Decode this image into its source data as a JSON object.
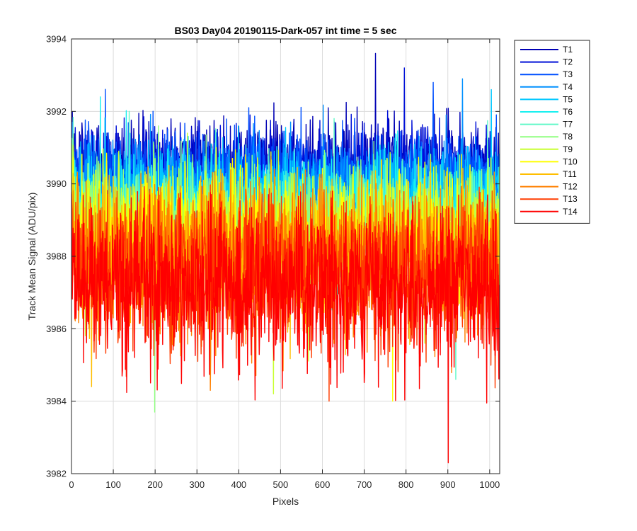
{
  "chart_data": {
    "type": "line",
    "title": "BS03 Day04 20190115-Dark-057 int time = 5 sec",
    "xlabel": "Pixels",
    "ylabel": "Track Mean Signal (ADU/pix)",
    "xlim": [
      0,
      1024
    ],
    "ylim": [
      3982,
      3994
    ],
    "xticks": [
      0,
      100,
      200,
      300,
      400,
      500,
      600,
      700,
      800,
      900,
      1000
    ],
    "yticks": [
      3982,
      3984,
      3986,
      3988,
      3990,
      3992,
      3994
    ],
    "grid": true,
    "legend_position": "outside-top-right",
    "n_points_per_series": 1024,
    "series": [
      {
        "name": "T1",
        "color": "#0000b4",
        "mean": 3990.6,
        "spread": 0.55,
        "max": 3993.6,
        "min": 3988.4
      },
      {
        "name": "T2",
        "color": "#0010d8",
        "mean": 3990.4,
        "spread": 0.55,
        "max": 3993.2,
        "min": 3988.2
      },
      {
        "name": "T3",
        "color": "#0050ff",
        "mean": 3990.2,
        "spread": 0.6,
        "max": 3992.8,
        "min": 3987.8
      },
      {
        "name": "T4",
        "color": "#0090ff",
        "mean": 3989.9,
        "spread": 0.6,
        "max": 3992.9,
        "min": 3987.5
      },
      {
        "name": "T5",
        "color": "#00c8ff",
        "mean": 3989.6,
        "spread": 0.65,
        "max": 3992.6,
        "min": 3986.8
      },
      {
        "name": "T6",
        "color": "#18f0f0",
        "mean": 3989.3,
        "spread": 0.7,
        "max": 3992.4,
        "min": 3984.7
      },
      {
        "name": "T7",
        "color": "#60f8c8",
        "mean": 3989.0,
        "spread": 0.75,
        "max": 3992.0,
        "min": 3984.6
      },
      {
        "name": "T8",
        "color": "#90ff80",
        "mean": 3988.8,
        "spread": 0.8,
        "max": 3991.6,
        "min": 3983.7
      },
      {
        "name": "T9",
        "color": "#c8ff30",
        "mean": 3988.6,
        "spread": 0.85,
        "max": 3991.4,
        "min": 3984.2
      },
      {
        "name": "T10",
        "color": "#ffff00",
        "mean": 3988.4,
        "spread": 0.9,
        "max": 3991.0,
        "min": 3984.0
      },
      {
        "name": "T11",
        "color": "#ffbe00",
        "mean": 3988.1,
        "spread": 0.95,
        "max": 3990.8,
        "min": 3984.4
      },
      {
        "name": "T12",
        "color": "#ff8000",
        "mean": 3987.8,
        "spread": 1.0,
        "max": 3990.4,
        "min": 3984.3
      },
      {
        "name": "T13",
        "color": "#ff3c00",
        "mean": 3987.5,
        "spread": 1.05,
        "max": 3990.0,
        "min": 3984.0
      },
      {
        "name": "T14",
        "color": "#ff0000",
        "mean": 3987.2,
        "spread": 1.1,
        "max": 3989.8,
        "min": 3982.3
      }
    ]
  }
}
